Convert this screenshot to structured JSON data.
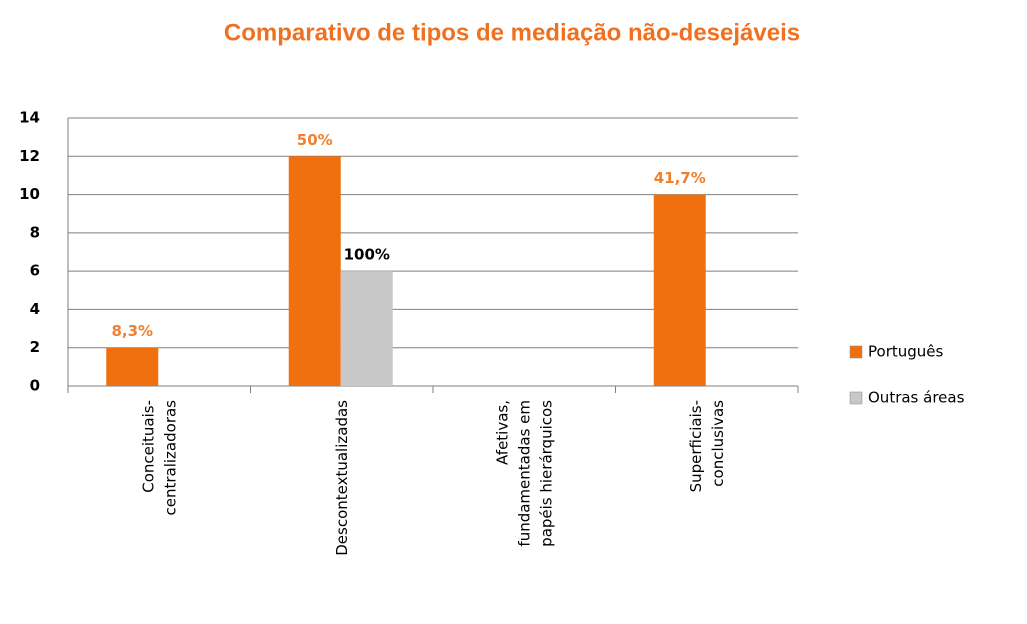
{
  "chart_data": {
    "type": "bar",
    "title": "Comparativo de tipos de mediação não-desejáveis",
    "categories": [
      "Conceituais-\ncentralizadoras",
      "Descontextualizadas",
      "Afetivas,\nfundamentadas em\npapéis hierárquicos",
      "Superficiais-\nconclusivas"
    ],
    "series": [
      {
        "name": "Português",
        "color": "#f07010",
        "values": [
          2,
          12,
          0,
          10
        ],
        "labels": [
          "8,3%",
          "50%",
          null,
          "41,7%"
        ],
        "label_color": "#f08030"
      },
      {
        "name": "Outras áreas",
        "color": "#c8c8c8",
        "values": [
          0,
          6,
          0,
          0
        ],
        "labels": [
          null,
          "100%",
          null,
          null
        ],
        "label_color": "#000000"
      }
    ],
    "ylim": [
      0,
      14
    ],
    "yticks": [
      0,
      2,
      4,
      6,
      8,
      10,
      12,
      14
    ],
    "grid": true,
    "legend": "right"
  }
}
